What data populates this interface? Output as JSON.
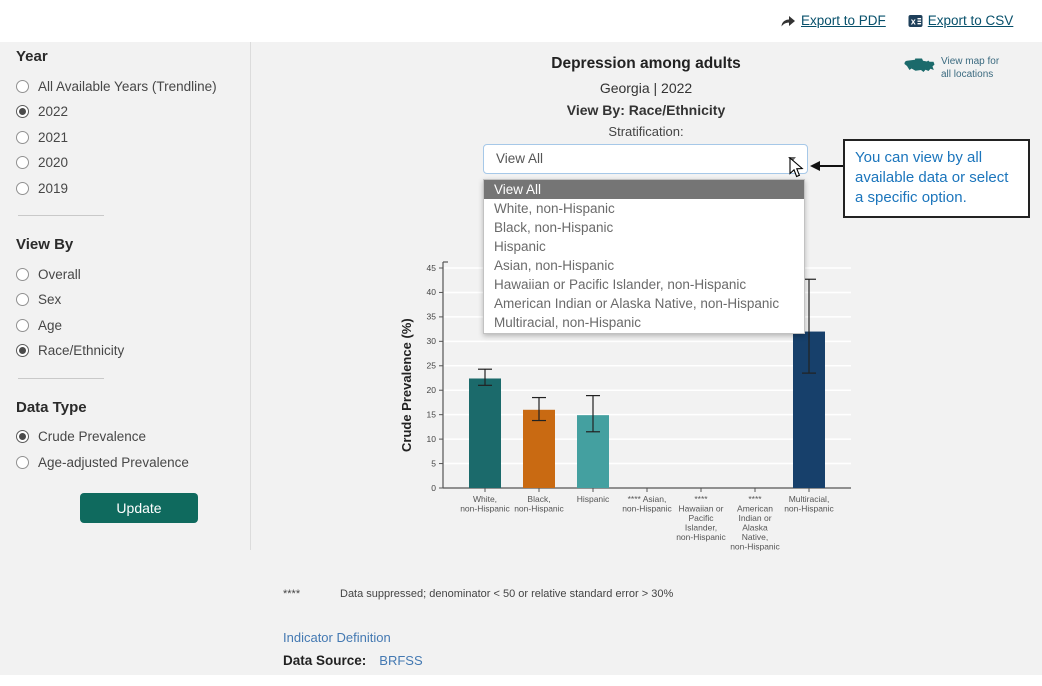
{
  "export": {
    "pdf_label": "Export to PDF",
    "csv_label": "Export to CSV"
  },
  "map_link": {
    "line1": "View map for",
    "line2": "all locations"
  },
  "sidebar": {
    "year": {
      "heading": "Year",
      "options": [
        {
          "label": "All Available Years (Trendline)",
          "selected": false
        },
        {
          "label": "2022",
          "selected": true
        },
        {
          "label": "2021",
          "selected": false
        },
        {
          "label": "2020",
          "selected": false
        },
        {
          "label": "2019",
          "selected": false
        }
      ]
    },
    "view_by": {
      "heading": "View By",
      "options": [
        {
          "label": "Overall",
          "selected": false
        },
        {
          "label": "Sex",
          "selected": false
        },
        {
          "label": "Age",
          "selected": false
        },
        {
          "label": "Race/Ethnicity",
          "selected": true
        }
      ]
    },
    "data_type": {
      "heading": "Data Type",
      "options": [
        {
          "label": "Crude Prevalence",
          "selected": true
        },
        {
          "label": "Age-adjusted Prevalence",
          "selected": false
        }
      ]
    },
    "update_label": "Update"
  },
  "header": {
    "title": "Depression among adults",
    "location_line": "Georgia | 2022",
    "view_by_line": "View By: Race/Ethnicity",
    "stratification_label": "Stratification:"
  },
  "dropdown": {
    "value": "View All",
    "highlighted_index": 0,
    "options": [
      "View All",
      "White, non-Hispanic",
      "Black, non-Hispanic",
      "Hispanic",
      "Asian, non-Hispanic",
      "Hawaiian or Pacific Islander, non-Hispanic",
      "American Indian or Alaska Native, non-Hispanic",
      "Multiracial, non-Hispanic"
    ]
  },
  "annotation": {
    "text": "You can view by all available data or select a specific option."
  },
  "chart_data": {
    "type": "bar",
    "title": "Depression among adults",
    "subtitle": "Georgia | 2022",
    "xlabel": "",
    "ylabel": "Crude Prevalence (%)",
    "ylim": [
      0,
      45
    ],
    "ytick_step": 5,
    "grid": true,
    "legend": "none",
    "categories": [
      "White, non-Hispanic",
      "Black, non-Hispanic",
      "Hispanic",
      "**** Asian, non-Hispanic",
      "**** Hawaiian or Pacific Islander, non-Hispanic",
      "**** American Indian or Alaska Native, non-Hispanic",
      "Multiracial, non-Hispanic"
    ],
    "category_label_lines": [
      [
        "White,",
        "non-Hispanic"
      ],
      [
        "Black,",
        "non-Hispanic"
      ],
      [
        "Hispanic"
      ],
      [
        "**** Asian,",
        "non-Hispanic"
      ],
      [
        "****",
        "Hawaiian or",
        "Pacific",
        "Islander,",
        "non-Hispanic"
      ],
      [
        "****",
        "American",
        "Indian or",
        "Alaska",
        "Native,",
        "non-Hispanic"
      ],
      [
        "Multiracial,",
        "non-Hispanic"
      ]
    ],
    "values": [
      22.4,
      16.0,
      14.9,
      null,
      null,
      null,
      32.0
    ],
    "ci_low": [
      21.0,
      13.8,
      11.5,
      null,
      null,
      null,
      23.5
    ],
    "ci_high": [
      24.3,
      18.5,
      18.9,
      null,
      null,
      null,
      42.7
    ],
    "bar_colors": [
      "#1b6a6b",
      "#c96a12",
      "#44a0a0",
      null,
      null,
      null,
      "#17406b"
    ],
    "suppressed_marker": "****"
  },
  "footnote": {
    "symbol": "****",
    "text": "Data suppressed; denominator < 50 or relative standard error > 30%"
  },
  "links": {
    "indicator_definition": "Indicator Definition",
    "data_source_label": "Data Source:",
    "data_source_value": "BRFSS"
  },
  "colors": {
    "accent_teal": "#0f6a5e",
    "link_dark": "#07506b",
    "link_blue": "#4479b2",
    "annotation_blue": "#1b75bc",
    "dropdown_highlight": "#757575",
    "panel_bg": "#f2f2f2"
  }
}
